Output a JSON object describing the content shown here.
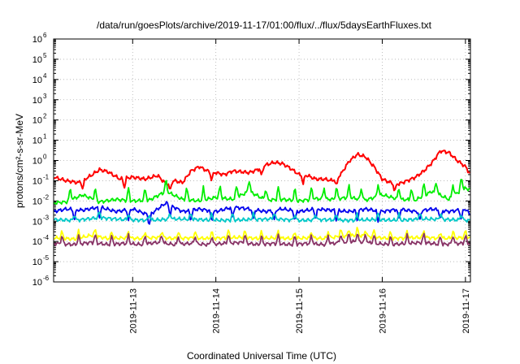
{
  "chart_data": {
    "type": "line",
    "title": "/data/run/goesPlots/archive/2019-11-17/01:00/flux/../flux/5daysEarthFluxes.txt",
    "xlabel": "Coordinated Universal Time (UTC)",
    "ylabel": "protons/cm²-s-sr-MeV",
    "yscale": "log",
    "ylim_exponent": [
      -6,
      6
    ],
    "y_ticks": [
      {
        "base": "10",
        "exp": "-6"
      },
      {
        "base": "10",
        "exp": "-5"
      },
      {
        "base": "10",
        "exp": "-4"
      },
      {
        "base": "10",
        "exp": "-3"
      },
      {
        "base": "10",
        "exp": "-2"
      },
      {
        "base": "10",
        "exp": "-1"
      },
      {
        "base": "10",
        "exp": "0"
      },
      {
        "base": "10",
        "exp": "1"
      },
      {
        "base": "10",
        "exp": "2"
      },
      {
        "base": "10",
        "exp": "3"
      },
      {
        "base": "10",
        "exp": "4"
      },
      {
        "base": "10",
        "exp": "5"
      },
      {
        "base": "10",
        "exp": "6"
      }
    ],
    "xlim_days": [
      12.05,
      17.06
    ],
    "x_ticks": [
      {
        "label": "2019-11-13",
        "day": 13
      },
      {
        "label": "2019-11-14",
        "day": 14
      },
      {
        "label": "2019-11-15",
        "day": 15
      },
      {
        "label": "2019-11-16",
        "day": 16
      },
      {
        "label": "2019-11-17",
        "day": 17
      }
    ],
    "grid": true,
    "series": [
      {
        "color": "#ff0000",
        "x": [
          12.05,
          12.2,
          12.35,
          12.5,
          12.6,
          12.7,
          12.85,
          13.0,
          13.15,
          13.3,
          13.4,
          13.5,
          13.6,
          13.7,
          13.8,
          13.9,
          14.0,
          14.1,
          14.2,
          14.3,
          14.4,
          14.5,
          14.6,
          14.7,
          14.8,
          14.9,
          15.0,
          15.1,
          15.2,
          15.3,
          15.4,
          15.5,
          15.6,
          15.7,
          15.8,
          15.9,
          16.0,
          16.1,
          16.2,
          16.3,
          16.4,
          16.5,
          16.6,
          16.7,
          16.8,
          16.9,
          17.0,
          17.06
        ],
        "y": [
          0.15,
          0.1,
          0.08,
          0.18,
          0.35,
          0.28,
          0.12,
          0.15,
          0.12,
          0.18,
          0.07,
          0.1,
          0.08,
          0.3,
          0.5,
          0.3,
          0.25,
          0.2,
          0.3,
          0.28,
          0.25,
          0.35,
          0.6,
          0.8,
          0.7,
          0.4,
          0.2,
          0.18,
          0.12,
          0.12,
          0.1,
          0.2,
          0.9,
          2.0,
          1.5,
          0.5,
          0.12,
          0.08,
          0.07,
          0.1,
          0.15,
          0.3,
          0.8,
          3.0,
          2.5,
          1.0,
          0.5,
          0.2
        ]
      },
      {
        "color": "#00ee00",
        "x": [
          12.05,
          12.2,
          12.4,
          12.6,
          12.8,
          13.0,
          13.2,
          13.4,
          13.6,
          13.8,
          14.0,
          14.2,
          14.4,
          14.6,
          14.8,
          15.0,
          15.2,
          15.4,
          15.6,
          15.8,
          16.0,
          16.2,
          16.4,
          16.6,
          16.8,
          17.0,
          17.06
        ],
        "y": [
          0.008,
          0.009,
          0.02,
          0.009,
          0.012,
          0.01,
          0.011,
          0.03,
          0.012,
          0.01,
          0.015,
          0.012,
          0.03,
          0.011,
          0.012,
          0.01,
          0.013,
          0.012,
          0.015,
          0.011,
          0.02,
          0.012,
          0.011,
          0.03,
          0.012,
          0.05,
          0.012
        ]
      },
      {
        "color": "#0000ee",
        "x": [
          12.05,
          12.2,
          12.4,
          12.6,
          12.8,
          13.0,
          13.2,
          13.4,
          13.6,
          13.8,
          14.0,
          14.2,
          14.4,
          14.6,
          14.8,
          15.0,
          15.2,
          15.4,
          15.6,
          15.8,
          16.0,
          16.2,
          16.4,
          16.6,
          16.8,
          17.0,
          17.06
        ],
        "y": [
          0.003,
          0.004,
          0.0035,
          0.005,
          0.003,
          0.004,
          0.002,
          0.008,
          0.003,
          0.004,
          0.003,
          0.005,
          0.004,
          0.003,
          0.004,
          0.003,
          0.004,
          0.0035,
          0.003,
          0.004,
          0.003,
          0.004,
          0.003,
          0.004,
          0.003,
          0.004,
          0.002
        ]
      },
      {
        "color": "#00c8c8",
        "x": [
          12.05,
          12.3,
          12.6,
          12.9,
          13.2,
          13.5,
          13.8,
          14.1,
          14.4,
          14.7,
          15.0,
          15.3,
          15.6,
          15.9,
          16.2,
          16.5,
          16.8,
          17.06
        ],
        "y": [
          0.0012,
          0.0011,
          0.0015,
          0.0012,
          0.0011,
          0.0013,
          0.0012,
          0.0011,
          0.0012,
          0.0013,
          0.0011,
          0.0012,
          0.0011,
          0.0012,
          0.0011,
          0.0013,
          0.0012,
          0.0011
        ]
      },
      {
        "color": "#ffff00",
        "x": [
          12.05,
          12.3,
          12.5,
          12.7,
          12.9,
          13.1,
          13.3,
          13.5,
          13.7,
          13.9,
          14.1,
          14.3,
          14.5,
          14.7,
          14.9,
          15.1,
          15.3,
          15.5,
          15.7,
          15.9,
          16.1,
          16.3,
          16.5,
          16.7,
          16.9,
          17.06
        ],
        "y": [
          0.00015,
          0.00013,
          0.0002,
          0.00014,
          0.00015,
          0.00014,
          0.00016,
          0.00014,
          0.00015,
          0.00014,
          0.00015,
          0.00016,
          0.00014,
          0.00015,
          0.00014,
          0.00015,
          0.00014,
          0.00018,
          0.0002,
          0.00016,
          0.00014,
          0.00015,
          0.00016,
          0.00014,
          0.00015,
          0.00016
        ]
      },
      {
        "color": "#883366",
        "x": [
          12.05,
          12.3,
          12.5,
          12.7,
          12.9,
          13.1,
          13.3,
          13.5,
          13.7,
          13.9,
          14.1,
          14.3,
          14.5,
          14.7,
          14.9,
          15.1,
          15.3,
          15.5,
          15.7,
          15.9,
          16.1,
          16.3,
          16.5,
          16.7,
          16.9,
          17.06
        ],
        "y": [
          8e-05,
          7e-05,
          9e-05,
          7e-05,
          8e-05,
          7e-05,
          9e-05,
          7e-05,
          8e-05,
          7e-05,
          8e-05,
          9e-05,
          7e-05,
          8e-05,
          7e-05,
          8e-05,
          7e-05,
          9e-05,
          0.0001,
          8e-05,
          7e-05,
          8e-05,
          9e-05,
          7e-05,
          8e-05,
          8e-05
        ]
      }
    ],
    "spikes": {
      "red_minor": [
        12.4,
        12.9,
        13.45,
        13.95,
        14.55,
        15.05,
        15.45,
        16.15
      ],
      "green_daily": [
        12.25,
        12.55,
        12.95,
        13.15,
        13.4,
        13.65,
        13.85,
        14.05,
        14.25,
        14.4,
        14.6,
        14.75,
        14.95,
        15.15,
        15.3,
        15.45,
        15.6,
        15.75,
        15.95,
        16.2,
        16.35,
        16.5,
        16.65,
        16.85,
        16.95,
        17.05
      ],
      "blue_daily": [
        12.3,
        12.6,
        12.95,
        13.2,
        13.45,
        13.7,
        13.95,
        14.2,
        14.45,
        14.7,
        14.95,
        15.2,
        15.45,
        15.7,
        15.95,
        16.2,
        16.45,
        16.7,
        16.95
      ],
      "low_daily": [
        12.15,
        12.35,
        12.55,
        12.75,
        12.95,
        13.15,
        13.35,
        13.55,
        13.75,
        13.95,
        14.15,
        14.35,
        14.55,
        14.75,
        14.95,
        15.15,
        15.35,
        15.5,
        15.6,
        15.7,
        15.8,
        15.9,
        16.1,
        16.3,
        16.5,
        16.7,
        16.85,
        17.0
      ]
    }
  }
}
